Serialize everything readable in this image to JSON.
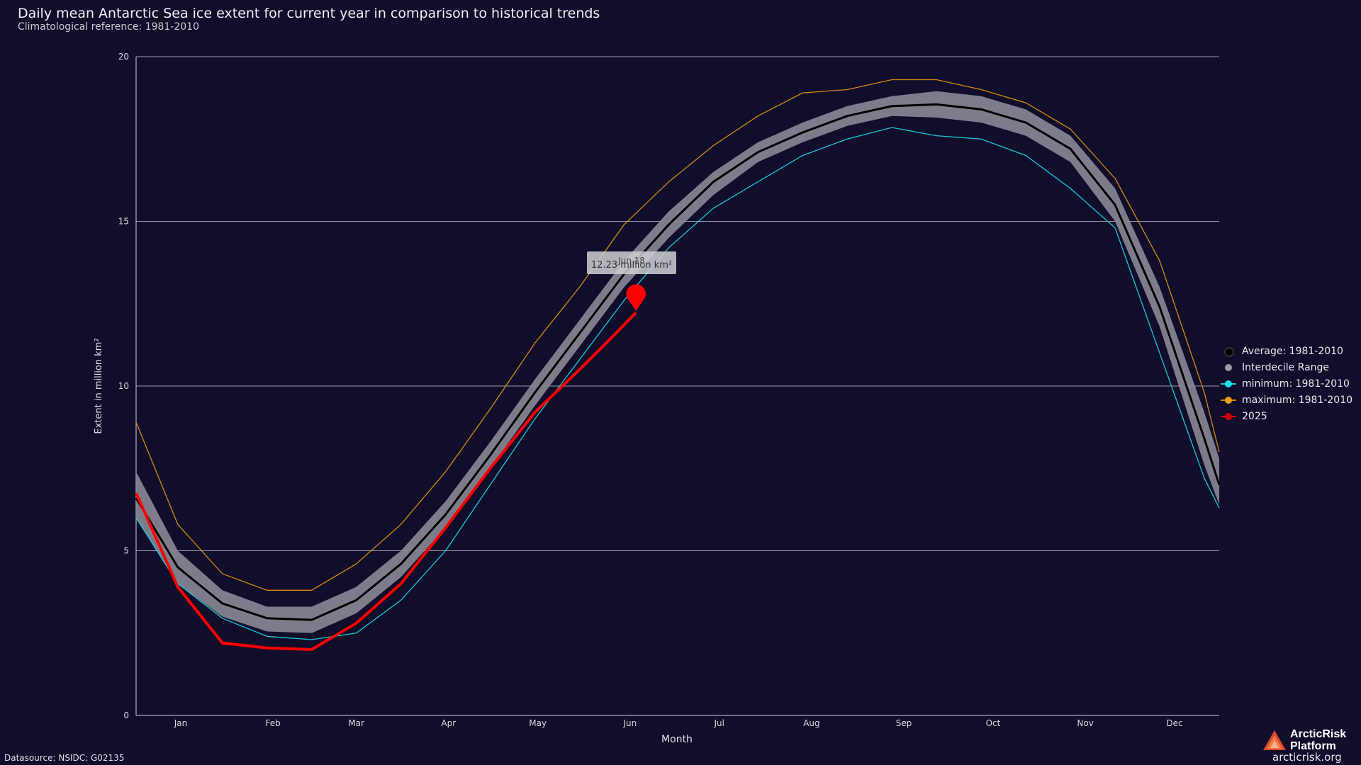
{
  "header": {
    "title": "Daily mean Antarctic Sea ice extent for current year in comparison to historical trends",
    "subtitle": "Climatological reference: 1981-2010"
  },
  "colors": {
    "background": "#110e2b",
    "average": "#000000",
    "interdecile": "#8a8896",
    "minimum": "#18c8d8",
    "maximum": "#d68a0a",
    "current": "#ff0000"
  },
  "chart_data": {
    "type": "line",
    "xlabel": "Month",
    "ylabel": "Extent in million km²",
    "ylim": [
      0,
      20
    ],
    "yticks": [
      "0",
      "5",
      "10",
      "15",
      "20"
    ],
    "month_labels": [
      "Jan",
      "Feb",
      "Mar",
      "Apr",
      "May",
      "Jun",
      "Jul",
      "Aug",
      "Sep",
      "Oct",
      "Nov",
      "Dec"
    ],
    "grid": true,
    "legend_position": "right",
    "x_day": [
      1,
      15,
      30,
      45,
      60,
      75,
      90,
      105,
      120,
      135,
      150,
      165,
      180,
      195,
      210,
      225,
      240,
      255,
      270,
      285,
      300,
      315,
      330,
      345,
      360,
      365
    ],
    "series": [
      {
        "name": "Average: 1981-2010",
        "values": [
          6.6,
          4.5,
          3.4,
          2.95,
          2.9,
          3.5,
          4.6,
          6.1,
          7.9,
          9.8,
          11.6,
          13.4,
          14.9,
          16.2,
          17.1,
          17.7,
          18.2,
          18.5,
          18.55,
          18.4,
          18.0,
          17.2,
          15.5,
          12.4,
          8.4,
          7.0
        ]
      },
      {
        "name": "Interdecile Range",
        "upper": [
          7.4,
          5.0,
          3.8,
          3.3,
          3.3,
          3.9,
          5.0,
          6.5,
          8.3,
          10.2,
          12.0,
          13.8,
          15.3,
          16.5,
          17.4,
          18.0,
          18.5,
          18.8,
          18.95,
          18.8,
          18.4,
          17.6,
          16.0,
          13.0,
          9.2,
          7.8
        ],
        "lower": [
          6.0,
          4.0,
          3.0,
          2.55,
          2.5,
          3.1,
          4.2,
          5.7,
          7.5,
          9.4,
          11.2,
          13.0,
          14.5,
          15.8,
          16.8,
          17.4,
          17.9,
          18.2,
          18.15,
          18.0,
          17.6,
          16.8,
          15.0,
          11.8,
          7.6,
          6.4
        ]
      },
      {
        "name": "minimum: 1981-2010",
        "values": [
          6.0,
          4.0,
          2.95,
          2.4,
          2.3,
          2.5,
          3.5,
          5.0,
          7.0,
          9.0,
          10.8,
          12.6,
          14.2,
          15.4,
          16.2,
          17.0,
          17.5,
          17.85,
          17.6,
          17.5,
          17.0,
          16.0,
          14.8,
          11.0,
          7.2,
          6.3
        ]
      },
      {
        "name": "maximum: 1981-2010",
        "values": [
          8.9,
          5.8,
          4.3,
          3.8,
          3.8,
          4.6,
          5.8,
          7.4,
          9.3,
          11.3,
          13.0,
          14.9,
          16.2,
          17.3,
          18.2,
          18.9,
          19.0,
          19.3,
          19.3,
          19.0,
          18.6,
          17.8,
          16.3,
          13.8,
          9.8,
          8.0
        ]
      },
      {
        "name": "2025",
        "values": [
          6.75,
          3.9,
          2.2,
          2.05,
          2.0,
          2.8,
          4.0,
          5.7,
          7.5,
          9.2,
          10.5,
          11.4,
          12.23
        ]
      }
    ],
    "current_x_day": [
      1,
      15,
      30,
      45,
      60,
      75,
      90,
      105,
      120,
      135,
      150,
      160,
      169
    ],
    "tooltip": {
      "date": "Jun 18",
      "value": "12.23 million km²",
      "x_day": 169,
      "y": 12.23
    }
  },
  "legend": {
    "items": [
      {
        "label": "Average: 1981-2010",
        "marker": "circle-black"
      },
      {
        "label": "Interdecile Range",
        "marker": "circle-gray"
      },
      {
        "label": "minimum: 1981-2010",
        "marker": "line-cyan"
      },
      {
        "label": "maximum: 1981-2010",
        "marker": "line-orange"
      },
      {
        "label": "2025",
        "marker": "line-red"
      }
    ]
  },
  "footer": {
    "datasource": "Datasource: NSIDC: G02135",
    "logo_line1": "ArcticRisk",
    "logo_line2": "Platform",
    "site": "arcticrisk.org"
  }
}
